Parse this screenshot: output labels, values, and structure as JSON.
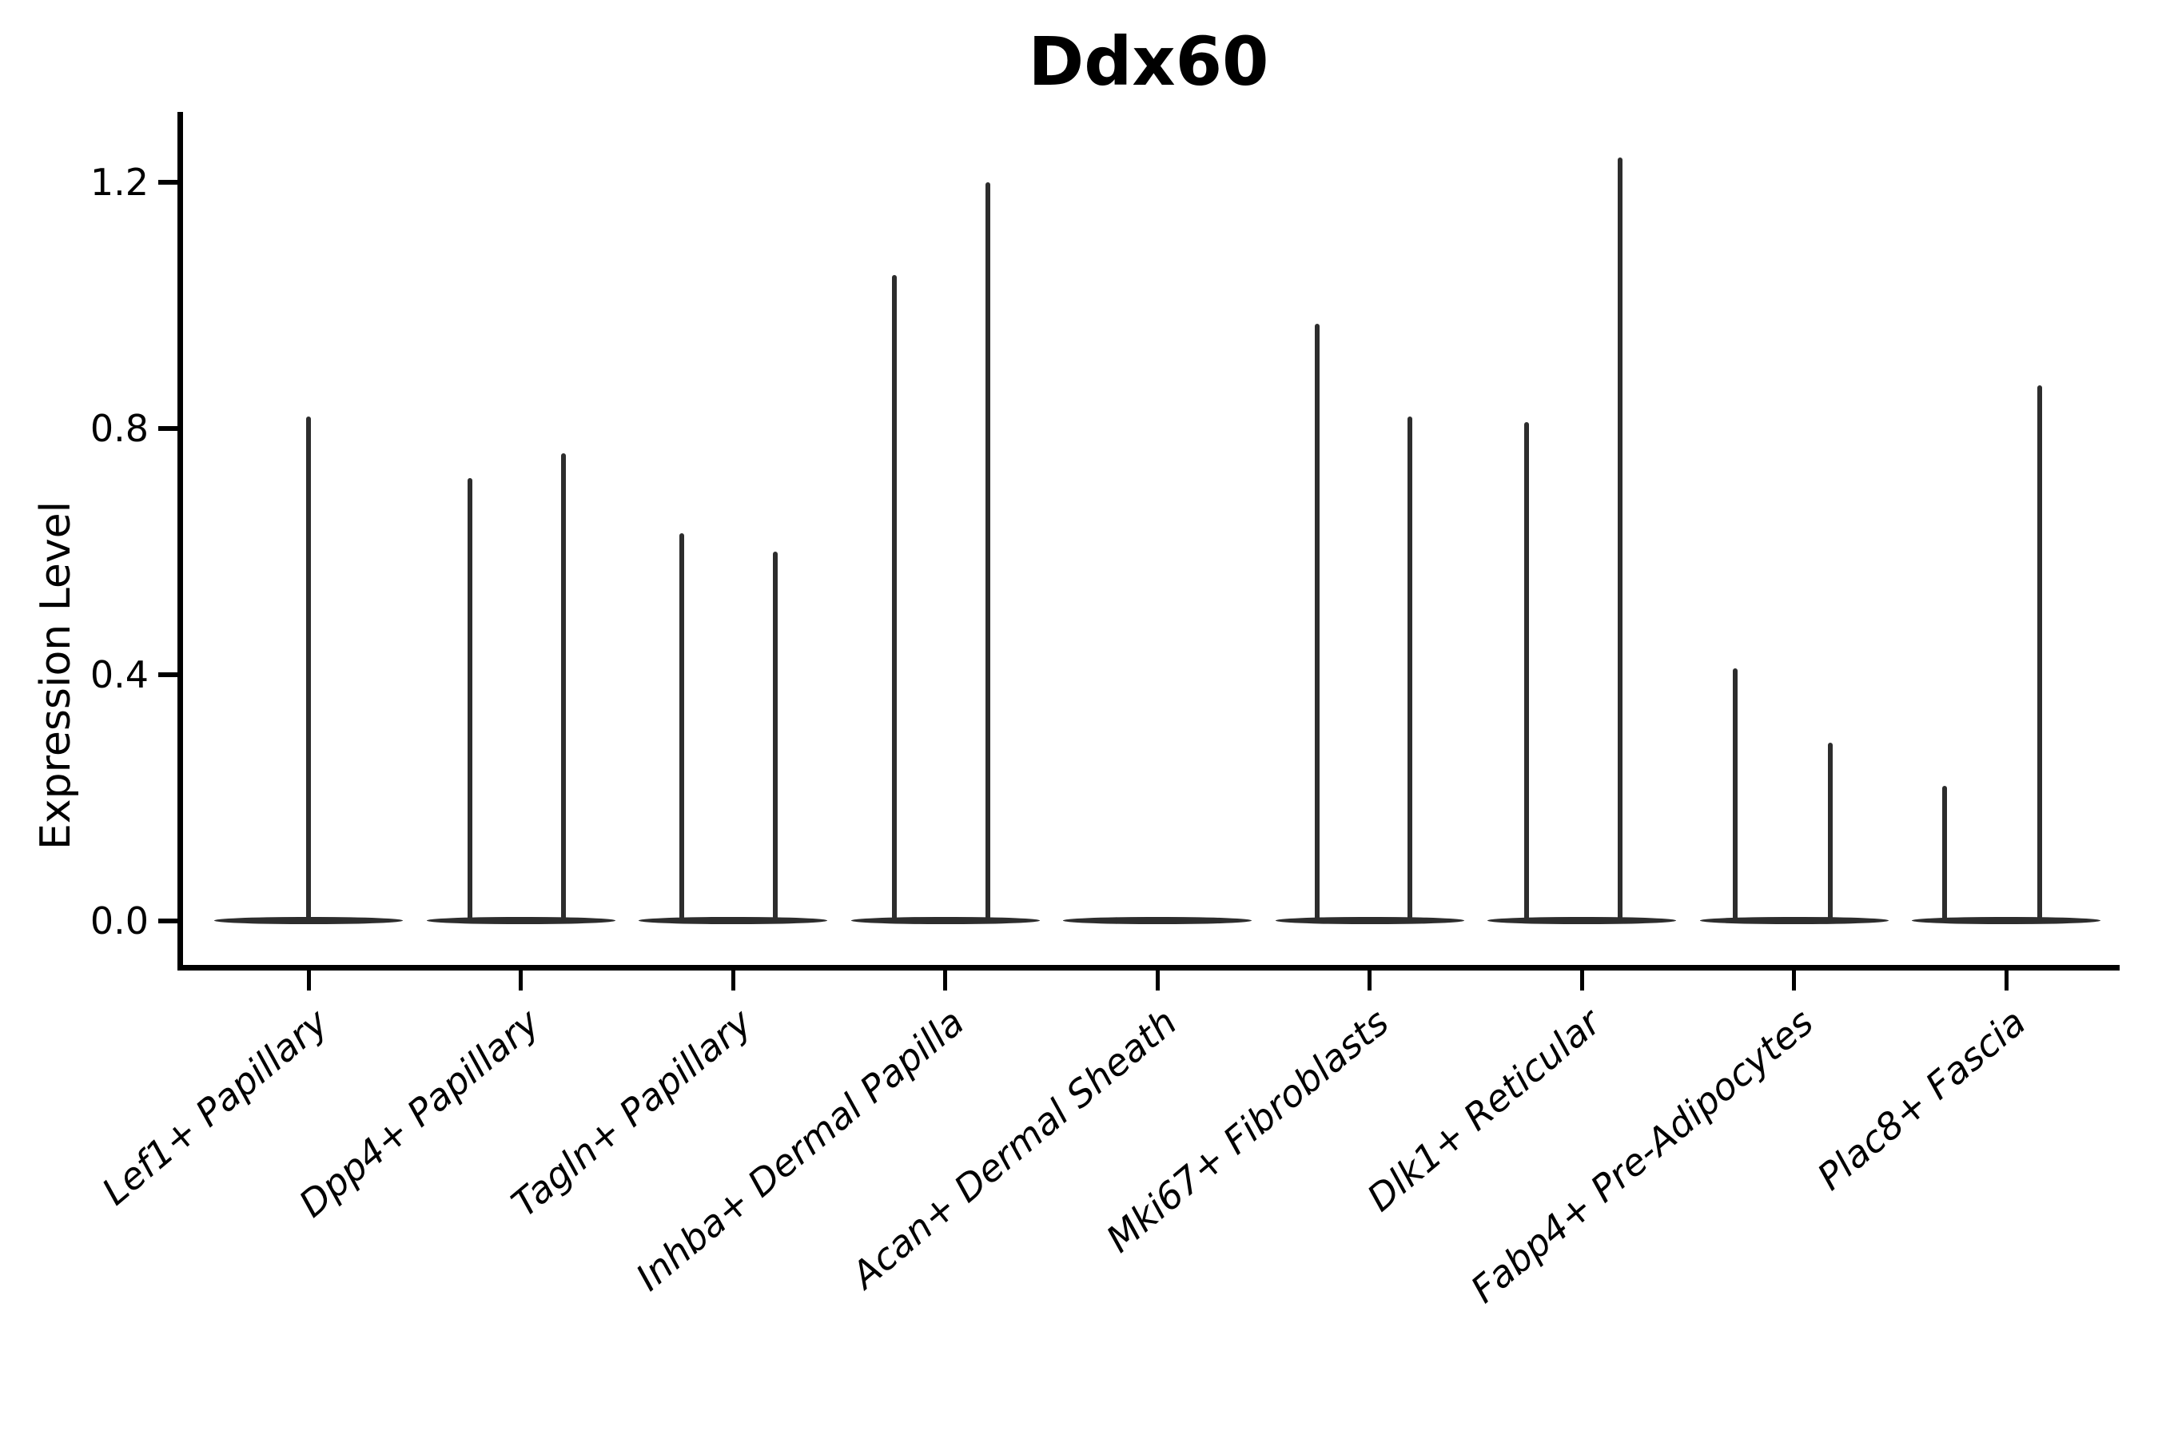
{
  "figure": {
    "title": "Ddx60"
  },
  "chart_data": {
    "type": "violin",
    "title": "Ddx60",
    "xlabel": "",
    "ylabel": "Expression Level",
    "ylim": [
      -0.08,
      1.31
    ],
    "grid": false,
    "legend": "none",
    "yticks": [
      {
        "value": 0.0,
        "label": "0.0"
      },
      {
        "value": 0.4,
        "label": "0.4"
      },
      {
        "value": 0.8,
        "label": "0.8"
      },
      {
        "value": 1.2,
        "label": "1.2"
      }
    ],
    "categories": [
      "Lef1+ Papillary",
      "Dpp4+ Papillary",
      "Tagln+ Papillary",
      "Inhba+ Dermal Papilla",
      "Acan+ Dermal Sheath",
      "Mki67+ Fibroblasts",
      "Dlk1+ Reticular",
      "Fabp4+ Pre-Adipocytes",
      "Plac8+ Fascia"
    ],
    "violins": [
      {
        "label": "Lef1+ Papillary",
        "baseline": 0.0,
        "spikes": [
          {
            "dx": 0,
            "max": 0.82
          }
        ]
      },
      {
        "label": "Dpp4+ Papillary",
        "baseline": 0.0,
        "spikes": [
          {
            "dx": -64,
            "max": 0.72
          },
          {
            "dx": 53,
            "max": 0.76
          }
        ]
      },
      {
        "label": "Tagln+ Papillary",
        "baseline": 0.0,
        "spikes": [
          {
            "dx": -64,
            "max": 0.63
          },
          {
            "dx": 53,
            "max": 0.6
          }
        ]
      },
      {
        "label": "Inhba+ Dermal Papilla",
        "baseline": 0.0,
        "spikes": [
          {
            "dx": -64,
            "max": 1.05
          },
          {
            "dx": 53,
            "max": 1.2
          }
        ]
      },
      {
        "label": "Acan+ Dermal Sheath",
        "baseline": 0.0,
        "spikes": []
      },
      {
        "label": "Mki67+ Fibroblasts",
        "baseline": 0.0,
        "spikes": [
          {
            "dx": -66,
            "max": 0.97
          },
          {
            "dx": 50,
            "max": 0.82
          }
        ]
      },
      {
        "label": "Dlk1+ Reticular",
        "baseline": 0.0,
        "spikes": [
          {
            "dx": -69,
            "max": 0.81
          },
          {
            "dx": 48,
            "max": 1.24
          }
        ]
      },
      {
        "label": "Fabp4+ Pre-Adipocytes",
        "baseline": 0.0,
        "spikes": [
          {
            "dx": -74,
            "max": 0.41
          },
          {
            "dx": 45,
            "max": 0.29
          }
        ]
      },
      {
        "label": "Plac8+ Fascia",
        "baseline": 0.0,
        "spikes": [
          {
            "dx": -77,
            "max": 0.22
          },
          {
            "dx": 42,
            "max": 0.87
          }
        ]
      }
    ],
    "style": {
      "ink_color": "#2d2d2d",
      "spine_color": "#000000",
      "background": "#ffffff"
    }
  }
}
